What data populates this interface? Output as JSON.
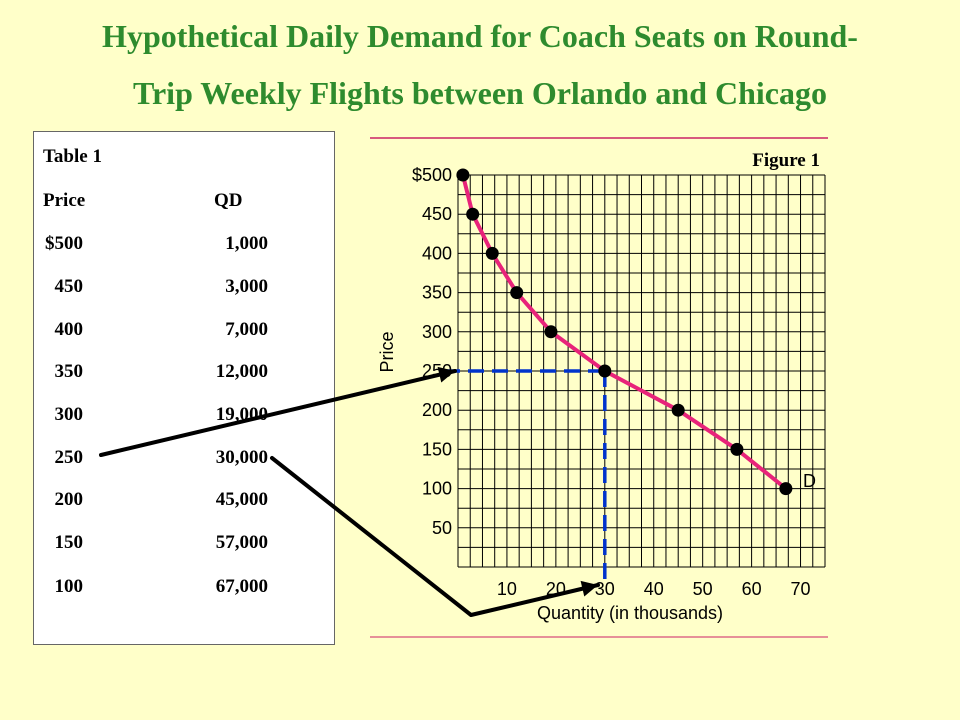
{
  "title": "Hypothetical Daily Demand for Coach Seats on Round-Trip Weekly Flights between Orlando and Chicago",
  "title_line1": "Hypothetical Daily Demand for Coach Seats on Round-",
  "title_line2": "Trip Weekly Flights between Orlando and Chicago",
  "table": {
    "title": "Table 1",
    "col_price": "Price",
    "col_qd": "QD",
    "rows": [
      {
        "price": "$500",
        "qd": "1,000"
      },
      {
        "price": "450",
        "qd": "3,000"
      },
      {
        "price": "400",
        "qd": "7,000"
      },
      {
        "price": "350",
        "qd": "12,000"
      },
      {
        "price": "300",
        "qd": "19,000"
      },
      {
        "price": "250",
        "qd": "30,000"
      },
      {
        "price": "200",
        "qd": "45,000"
      },
      {
        "price": "150",
        "qd": "57,000"
      },
      {
        "price": "100",
        "qd": "67,000"
      }
    ]
  },
  "chart_data": {
    "type": "line",
    "figure_label": "Figure 1",
    "xlabel": "Quantity (in thousands)",
    "ylabel": "Price",
    "x": [
      1,
      3,
      7,
      12,
      19,
      30,
      45,
      57,
      67
    ],
    "y": [
      500,
      450,
      400,
      350,
      300,
      250,
      200,
      150,
      100
    ],
    "xlim": [
      0,
      75
    ],
    "ylim": [
      0,
      500
    ],
    "x_ticks": [
      10,
      20,
      30,
      40,
      50,
      60,
      70
    ],
    "x_tick_labels": [
      "10",
      "20",
      "30",
      "40",
      "50",
      "60",
      "70"
    ],
    "y_ticks": [
      50,
      100,
      150,
      200,
      250,
      300,
      350,
      400,
      450,
      500
    ],
    "y_tick_labels": [
      "50",
      "100",
      "150",
      "200",
      "250",
      "300",
      "350",
      "400",
      "450",
      "$500"
    ],
    "grid": true,
    "curve_label": "D",
    "highlight": {
      "x": 30,
      "y": 250
    },
    "colors": {
      "curve": "#e8237a",
      "point": "#000000",
      "guide": "#0033cc",
      "grid": "#000000",
      "frame_line": "#cc2266"
    }
  }
}
